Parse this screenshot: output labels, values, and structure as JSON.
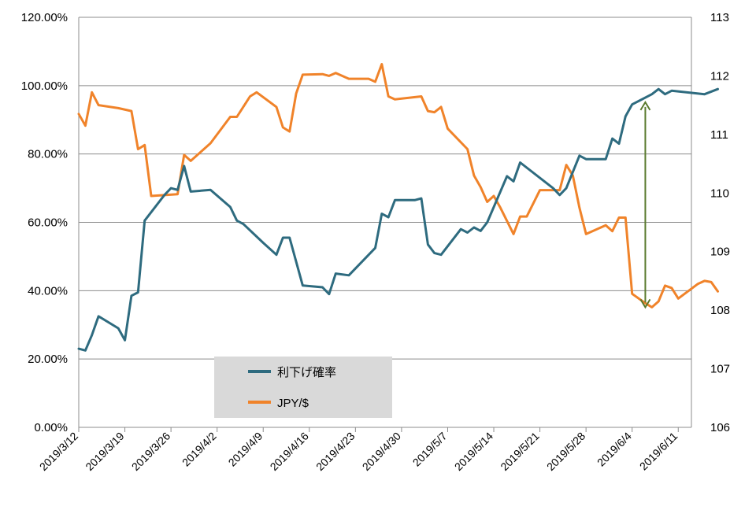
{
  "chart_data": {
    "type": "line",
    "title": "",
    "xlabel": "",
    "ylabel": "",
    "y2label": "",
    "grid": true,
    "legend_position": "bottom-center",
    "x_tick_labels": [
      "2019/3/12",
      "2019/3/19",
      "2019/3/26",
      "2019/4/2",
      "2019/4/9",
      "2019/4/16",
      "2019/4/23",
      "2019/4/30",
      "2019/5/7",
      "2019/5/14",
      "2019/5/21",
      "2019/5/28",
      "2019/6/4",
      "2019/6/11"
    ],
    "x_range": [
      "2019/3/12",
      "2019/6/13"
    ],
    "y_left": {
      "range": [
        0,
        1.2
      ],
      "tick_labels": [
        "0.00%",
        "20.00%",
        "40.00%",
        "60.00%",
        "80.00%",
        "100.00%",
        "120.00%"
      ]
    },
    "y_right": {
      "range": [
        106,
        113
      ],
      "tick_labels": [
        "106",
        "107",
        "108",
        "109",
        "110",
        "111",
        "112",
        "113"
      ]
    },
    "series": [
      {
        "name": "利下げ確率",
        "axis": "left",
        "color": "#2e6b7f",
        "points": [
          [
            "2019/3/12",
            0.23
          ],
          [
            "2019/3/13",
            0.225
          ],
          [
            "2019/3/14",
            0.27
          ],
          [
            "2019/3/15",
            0.325
          ],
          [
            "2019/3/18",
            0.29
          ],
          [
            "2019/3/19",
            0.255
          ],
          [
            "2019/3/20",
            0.385
          ],
          [
            "2019/3/21",
            0.395
          ],
          [
            "2019/3/22",
            0.605
          ],
          [
            "2019/3/25",
            0.68
          ],
          [
            "2019/3/26",
            0.7
          ],
          [
            "2019/3/27",
            0.695
          ],
          [
            "2019/3/28",
            0.765
          ],
          [
            "2019/3/29",
            0.69
          ],
          [
            "2019/4/1",
            0.695
          ],
          [
            "2019/4/4",
            0.645
          ],
          [
            "2019/4/5",
            0.605
          ],
          [
            "2019/4/6",
            0.595
          ],
          [
            "2019/4/9",
            0.54
          ],
          [
            "2019/4/11",
            0.505
          ],
          [
            "2019/4/12",
            0.555
          ],
          [
            "2019/4/13",
            0.555
          ],
          [
            "2019/4/15",
            0.415
          ],
          [
            "2019/4/18",
            0.41
          ],
          [
            "2019/4/19",
            0.39
          ],
          [
            "2019/4/20",
            0.45
          ],
          [
            "2019/4/22",
            0.445
          ],
          [
            "2019/4/26",
            0.525
          ],
          [
            "2019/4/27",
            0.625
          ],
          [
            "2019/4/28",
            0.615
          ],
          [
            "2019/4/29",
            0.665
          ],
          [
            "2019/5/2",
            0.665
          ],
          [
            "2019/5/3",
            0.67
          ],
          [
            "2019/5/4",
            0.535
          ],
          [
            "2019/5/5",
            0.51
          ],
          [
            "2019/5/6",
            0.505
          ],
          [
            "2019/5/9",
            0.58
          ],
          [
            "2019/5/10",
            0.57
          ],
          [
            "2019/5/11",
            0.585
          ],
          [
            "2019/5/12",
            0.575
          ],
          [
            "2019/5/13",
            0.6
          ],
          [
            "2019/5/16",
            0.735
          ],
          [
            "2019/5/17",
            0.72
          ],
          [
            "2019/5/18",
            0.775
          ],
          [
            "2019/5/23",
            0.7
          ],
          [
            "2019/5/24",
            0.68
          ],
          [
            "2019/5/25",
            0.7
          ],
          [
            "2019/5/27",
            0.795
          ],
          [
            "2019/5/28",
            0.785
          ],
          [
            "2019/5/31",
            0.785
          ],
          [
            "2019/6/1",
            0.845
          ],
          [
            "2019/6/2",
            0.83
          ],
          [
            "2019/6/3",
            0.91
          ],
          [
            "2019/6/4",
            0.945
          ],
          [
            "2019/6/7",
            0.975
          ],
          [
            "2019/6/8",
            0.99
          ],
          [
            "2019/6/9",
            0.975
          ],
          [
            "2019/6/10",
            0.985
          ],
          [
            "2019/6/15",
            0.975
          ],
          [
            "2019/6/17",
            0.99
          ]
        ]
      },
      {
        "name": "JPY/$",
        "axis": "right",
        "color": "#f0832a",
        "points": [
          [
            "2019/3/12",
            111.35
          ],
          [
            "2019/3/13",
            111.15
          ],
          [
            "2019/3/14",
            111.72
          ],
          [
            "2019/3/15",
            111.5
          ],
          [
            "2019/3/18",
            111.45
          ],
          [
            "2019/3/20",
            111.4
          ],
          [
            "2019/3/21",
            110.75
          ],
          [
            "2019/3/22",
            110.82
          ],
          [
            "2019/3/23",
            109.95
          ],
          [
            "2019/3/27",
            109.98
          ],
          [
            "2019/3/28",
            110.65
          ],
          [
            "2019/3/29",
            110.55
          ],
          [
            "2019/4/1",
            110.85
          ],
          [
            "2019/4/4",
            111.3
          ],
          [
            "2019/4/5",
            111.3
          ],
          [
            "2019/4/7",
            111.65
          ],
          [
            "2019/4/8",
            111.72
          ],
          [
            "2019/4/11",
            111.47
          ],
          [
            "2019/4/12",
            111.12
          ],
          [
            "2019/4/13",
            111.05
          ],
          [
            "2019/4/14",
            111.7
          ],
          [
            "2019/4/15",
            112.02
          ],
          [
            "2019/4/18",
            112.03
          ],
          [
            "2019/4/19",
            112.0
          ],
          [
            "2019/4/20",
            112.05
          ],
          [
            "2019/4/22",
            111.95
          ],
          [
            "2019/4/25",
            111.95
          ],
          [
            "2019/4/26",
            111.9
          ],
          [
            "2019/4/27",
            112.2
          ],
          [
            "2019/4/28",
            111.65
          ],
          [
            "2019/4/29",
            111.6
          ],
          [
            "2019/5/3",
            111.65
          ],
          [
            "2019/5/4",
            111.4
          ],
          [
            "2019/5/5",
            111.38
          ],
          [
            "2019/5/6",
            111.47
          ],
          [
            "2019/5/7",
            111.1
          ],
          [
            "2019/5/10",
            110.75
          ],
          [
            "2019/5/11",
            110.3
          ],
          [
            "2019/5/12",
            110.1
          ],
          [
            "2019/5/13",
            109.85
          ],
          [
            "2019/5/14",
            109.95
          ],
          [
            "2019/5/15",
            109.75
          ],
          [
            "2019/5/17",
            109.3
          ],
          [
            "2019/5/18",
            109.6
          ],
          [
            "2019/5/19",
            109.6
          ],
          [
            "2019/5/21",
            110.05
          ],
          [
            "2019/5/23",
            110.05
          ],
          [
            "2019/5/24",
            110.05
          ],
          [
            "2019/5/25",
            110.48
          ],
          [
            "2019/5/26",
            110.3
          ],
          [
            "2019/5/27",
            109.75
          ],
          [
            "2019/5/28",
            109.3
          ],
          [
            "2019/5/31",
            109.45
          ],
          [
            "2019/6/1",
            109.35
          ],
          [
            "2019/6/2",
            109.58
          ],
          [
            "2019/6/3",
            109.58
          ],
          [
            "2019/6/4",
            108.28
          ],
          [
            "2019/6/6",
            108.12
          ],
          [
            "2019/6/7",
            108.05
          ],
          [
            "2019/6/8",
            108.15
          ],
          [
            "2019/6/9",
            108.42
          ],
          [
            "2019/6/10",
            108.38
          ],
          [
            "2019/6/11",
            108.2
          ],
          [
            "2019/6/14",
            108.45
          ],
          [
            "2019/6/15",
            108.5
          ],
          [
            "2019/6/16",
            108.48
          ],
          [
            "2019/6/17",
            108.32
          ]
        ]
      }
    ],
    "annotations": [
      {
        "type": "double-arrow",
        "color": "#5a7a2e",
        "x": "2019/6/6",
        "y_from_right": 108.05,
        "y_to_right": 111.55
      }
    ]
  }
}
